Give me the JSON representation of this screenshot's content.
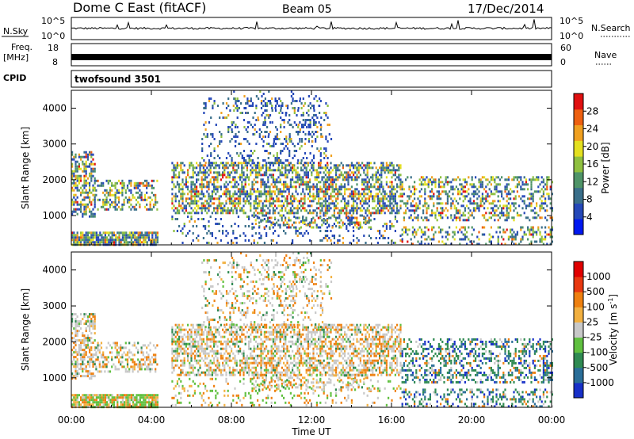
{
  "header": {
    "station": "Dome C East (fitACF)",
    "beam": "Beam 05",
    "date": "17/Dec/2014"
  },
  "strips": {
    "nsky_label": "N.Sky",
    "nsky_ticks_left": [
      "10^5",
      "10^0"
    ],
    "nsky_ticks_right": [
      "10^5",
      "10^0"
    ],
    "nsearch_label": "N.Search",
    "freq_label_line1": "Freq.",
    "freq_label_line2": "[MHz]",
    "freq_ticks": [
      "18",
      "8"
    ],
    "nave_ticks": [
      "60",
      "0"
    ],
    "nave_label": "Nave",
    "cpid_label": "CPID",
    "cpid_value": "twofsound 3501"
  },
  "chart_data": [
    {
      "type": "heatmap",
      "name": "power",
      "ylabel": "Slant Range [km]",
      "ylim": [
        180,
        4500
      ],
      "yticks": [
        "4000",
        "3000",
        "2000",
        "1000"
      ],
      "xlim": [
        "00:00",
        "24:00"
      ],
      "colorbar": {
        "label": "Power [dB]",
        "ticks": [
          "28",
          "24",
          "20",
          "16",
          "12",
          "8",
          "4"
        ],
        "colors": [
          "#0018f0",
          "#2548b8",
          "#3a6f8a",
          "#4f9468",
          "#8fc040",
          "#e4e020",
          "#f0a020",
          "#ee6010",
          "#e01010"
        ]
      }
    },
    {
      "type": "heatmap",
      "name": "velocity",
      "ylabel": "Slant Range [km]",
      "ylim": [
        180,
        4500
      ],
      "yticks": [
        "4000",
        "3000",
        "2000",
        "1000"
      ],
      "xlabel": "Time UT",
      "xticks": [
        "00:00",
        "04:00",
        "08:00",
        "12:00",
        "16:00",
        "20:00",
        "00:00"
      ],
      "colorbar": {
        "label_main": "Velocity [m s",
        "label_sup": "-1",
        "label_end": "]",
        "ticks": [
          "1000",
          "500",
          "100",
          "25",
          "-25",
          "-100",
          "-500",
          "-1000"
        ],
        "colors": [
          "#1830c8",
          "#2a6e98",
          "#2f8a52",
          "#60c040",
          "#c8c8c8",
          "#f2b040",
          "#ee8010",
          "#e83810",
          "#e00000"
        ]
      }
    }
  ]
}
